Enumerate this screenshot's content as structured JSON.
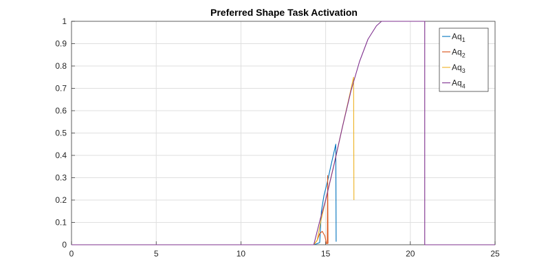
{
  "chart_data": {
    "type": "line",
    "title": "Preferred Shape Task Activation",
    "xlabel": "",
    "ylabel": "",
    "xlim": [
      0,
      25
    ],
    "ylim": [
      0,
      1
    ],
    "xticks": [
      0,
      5,
      10,
      15,
      20,
      25
    ],
    "yticks": [
      0,
      0.1,
      0.2,
      0.3,
      0.4,
      0.5,
      0.6,
      0.7,
      0.8,
      0.9,
      1
    ],
    "xtick_labels": [
      "0",
      "5",
      "10",
      "15",
      "20",
      "25"
    ],
    "ytick_labels": [
      "0",
      "0.1",
      "0.2",
      "0.3",
      "0.4",
      "0.5",
      "0.6",
      "0.7",
      "0.8",
      "0.9",
      "1"
    ],
    "grid": true,
    "legend_position": "top-right",
    "series": [
      {
        "name": "Aq",
        "name_sub": "1",
        "color": "#0072BD",
        "points": [
          [
            0,
            0
          ],
          [
            14.3,
            0
          ],
          [
            14.5,
            0.005
          ],
          [
            14.65,
            0.01
          ],
          [
            14.75,
            0.15
          ],
          [
            14.9,
            0.22
          ],
          [
            15.1,
            0.28
          ],
          [
            15.3,
            0.35
          ],
          [
            15.6,
            0.45
          ],
          [
            15.62,
            0.015
          ],
          [
            15.64,
            0.015
          ]
        ]
      },
      {
        "name": "Aq",
        "name_sub": "2",
        "color": "#D95319",
        "points": [
          [
            0,
            0
          ],
          [
            14.3,
            0
          ],
          [
            14.5,
            0.02
          ],
          [
            14.65,
            0.05
          ],
          [
            14.8,
            0.06
          ],
          [
            14.95,
            0.04
          ],
          [
            15.05,
            0.005
          ],
          [
            15.1,
            0.005
          ],
          [
            15.12,
            0.31
          ],
          [
            15.14,
            0.005
          ]
        ]
      },
      {
        "name": "Aq",
        "name_sub": "3",
        "color": "#EDB120",
        "points": [
          [
            0,
            0
          ],
          [
            14.3,
            0
          ],
          [
            14.5,
            0.02
          ],
          [
            14.7,
            0.1
          ],
          [
            15.0,
            0.2
          ],
          [
            15.5,
            0.36
          ],
          [
            16.0,
            0.53
          ],
          [
            16.3,
            0.63
          ],
          [
            16.65,
            0.75
          ],
          [
            16.67,
            0.2
          ]
        ]
      },
      {
        "name": "Aq",
        "name_sub": "4",
        "color": "#7E2F8E",
        "points": [
          [
            0,
            0
          ],
          [
            14.3,
            0
          ],
          [
            14.5,
            0.06
          ],
          [
            14.7,
            0.12
          ],
          [
            15.0,
            0.2
          ],
          [
            15.5,
            0.36
          ],
          [
            16.0,
            0.53
          ],
          [
            16.5,
            0.69
          ],
          [
            17.0,
            0.82
          ],
          [
            17.5,
            0.92
          ],
          [
            18.0,
            0.98
          ],
          [
            18.3,
            1
          ],
          [
            20.85,
            1
          ],
          [
            20.85,
            0
          ],
          [
            25,
            0
          ]
        ]
      }
    ]
  }
}
